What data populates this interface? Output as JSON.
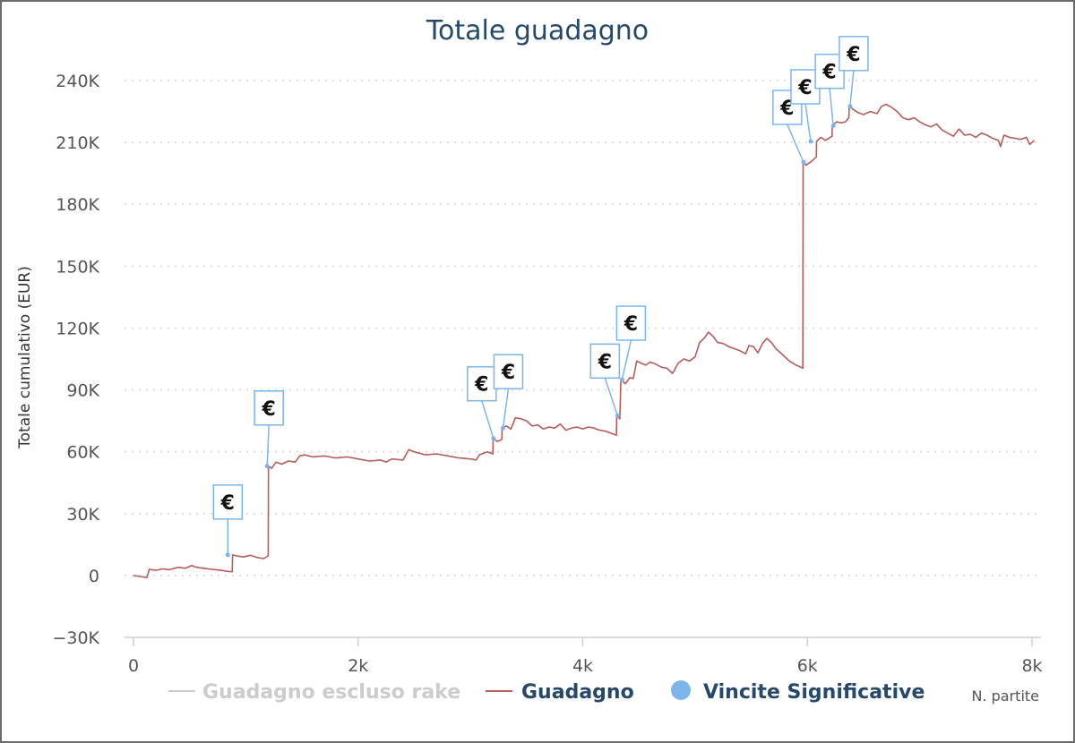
{
  "chart_data": {
    "type": "line",
    "title": "Totale guadagno",
    "xlabel": "N. partite",
    "ylabel": "Totale cumulativo (EUR)",
    "xlim": [
      0,
      8000
    ],
    "ylim": [
      -30000,
      240000
    ],
    "x_ticks": [
      0,
      2000,
      4000,
      6000,
      8000
    ],
    "x_tick_labels": [
      "0",
      "2k",
      "4k",
      "6k",
      "8k"
    ],
    "y_ticks": [
      -30000,
      0,
      30000,
      60000,
      90000,
      120000,
      150000,
      180000,
      210000,
      240000
    ],
    "y_tick_labels": [
      "−30K",
      "0",
      "30K",
      "60K",
      "90K",
      "120K",
      "150K",
      "180K",
      "210K",
      "240K"
    ],
    "grid": "horizontal dotted",
    "legend_position": "bottom",
    "colors": {
      "title": "#26486b",
      "guadagno": "#b85c5c",
      "rake_hidden": "#cccccc",
      "vincite": "#7cb5ec",
      "legend_active": "#26486b",
      "legend_hidden": "#cccccc"
    },
    "series": [
      {
        "name": "Guadagno escluso rake",
        "visible": false,
        "points": []
      },
      {
        "name": "Guadagno",
        "visible": true,
        "points": [
          [
            0,
            0
          ],
          [
            60,
            -500
          ],
          [
            120,
            -1000
          ],
          [
            140,
            3000
          ],
          [
            200,
            2500
          ],
          [
            260,
            3200
          ],
          [
            320,
            2800
          ],
          [
            400,
            4000
          ],
          [
            460,
            3500
          ],
          [
            520,
            4800
          ],
          [
            560,
            4000
          ],
          [
            620,
            3500
          ],
          [
            700,
            3000
          ],
          [
            780,
            2500
          ],
          [
            840,
            2000
          ],
          [
            880,
            1800
          ],
          [
            882,
            10000
          ],
          [
            920,
            9500
          ],
          [
            980,
            9000
          ],
          [
            1040,
            9800
          ],
          [
            1100,
            8700
          ],
          [
            1160,
            8200
          ],
          [
            1200,
            9500
          ],
          [
            1202,
            53000
          ],
          [
            1230,
            52000
          ],
          [
            1270,
            55000
          ],
          [
            1320,
            54000
          ],
          [
            1380,
            55500
          ],
          [
            1440,
            55000
          ],
          [
            1480,
            58000
          ],
          [
            1520,
            58500
          ],
          [
            1600,
            57500
          ],
          [
            1700,
            58000
          ],
          [
            1800,
            57000
          ],
          [
            1900,
            57500
          ],
          [
            2000,
            56500
          ],
          [
            2100,
            55500
          ],
          [
            2200,
            56000
          ],
          [
            2250,
            55000
          ],
          [
            2300,
            56500
          ],
          [
            2400,
            56000
          ],
          [
            2450,
            61000
          ],
          [
            2500,
            60000
          ],
          [
            2600,
            58500
          ],
          [
            2700,
            59000
          ],
          [
            2800,
            58000
          ],
          [
            2900,
            57000
          ],
          [
            3000,
            56500
          ],
          [
            3050,
            56000
          ],
          [
            3080,
            58500
          ],
          [
            3150,
            60000
          ],
          [
            3200,
            59000
          ],
          [
            3202,
            66500
          ],
          [
            3240,
            65000
          ],
          [
            3280,
            66000
          ],
          [
            3282,
            71500
          ],
          [
            3320,
            72500
          ],
          [
            3360,
            71000
          ],
          [
            3400,
            76500
          ],
          [
            3450,
            76000
          ],
          [
            3500,
            75000
          ],
          [
            3550,
            72500
          ],
          [
            3600,
            73000
          ],
          [
            3650,
            71000
          ],
          [
            3700,
            72000
          ],
          [
            3750,
            71500
          ],
          [
            3800,
            73500
          ],
          [
            3850,
            70500
          ],
          [
            3900,
            71500
          ],
          [
            3950,
            72000
          ],
          [
            4000,
            71000
          ],
          [
            4050,
            72000
          ],
          [
            4100,
            71500
          ],
          [
            4150,
            70500
          ],
          [
            4200,
            70000
          ],
          [
            4250,
            69000
          ],
          [
            4300,
            68000
          ],
          [
            4302,
            77500
          ],
          [
            4330,
            76000
          ],
          [
            4340,
            95000
          ],
          [
            4380,
            93000
          ],
          [
            4420,
            96000
          ],
          [
            4450,
            95500
          ],
          [
            4480,
            104000
          ],
          [
            4520,
            103000
          ],
          [
            4560,
            102000
          ],
          [
            4600,
            103500
          ],
          [
            4650,
            102500
          ],
          [
            4700,
            101000
          ],
          [
            4750,
            100500
          ],
          [
            4800,
            98000
          ],
          [
            4850,
            103000
          ],
          [
            4900,
            105000
          ],
          [
            4950,
            104000
          ],
          [
            5000,
            106000
          ],
          [
            5040,
            113000
          ],
          [
            5080,
            115000
          ],
          [
            5120,
            118000
          ],
          [
            5160,
            116000
          ],
          [
            5200,
            113000
          ],
          [
            5250,
            112500
          ],
          [
            5300,
            111000
          ],
          [
            5350,
            110000
          ],
          [
            5400,
            109000
          ],
          [
            5450,
            107500
          ],
          [
            5480,
            111500
          ],
          [
            5520,
            111000
          ],
          [
            5560,
            108000
          ],
          [
            5600,
            112500
          ],
          [
            5640,
            115000
          ],
          [
            5680,
            113000
          ],
          [
            5720,
            110000
          ],
          [
            5780,
            107000
          ],
          [
            5840,
            104000
          ],
          [
            5900,
            102000
          ],
          [
            5960,
            100500
          ],
          [
            5962,
            200500
          ],
          [
            5990,
            199000
          ],
          [
            6040,
            201000
          ],
          [
            6080,
            203000
          ],
          [
            6082,
            210500
          ],
          [
            6120,
            212500
          ],
          [
            6160,
            211000
          ],
          [
            6220,
            213000
          ],
          [
            6222,
            218000
          ],
          [
            6260,
            220000
          ],
          [
            6300,
            219500
          ],
          [
            6340,
            220000
          ],
          [
            6370,
            222000
          ],
          [
            6372,
            227500
          ],
          [
            6410,
            226000
          ],
          [
            6450,
            224500
          ],
          [
            6500,
            223500
          ],
          [
            6560,
            225000
          ],
          [
            6620,
            224000
          ],
          [
            6660,
            227500
          ],
          [
            6700,
            228500
          ],
          [
            6750,
            227000
          ],
          [
            6800,
            225000
          ],
          [
            6850,
            222000
          ],
          [
            6900,
            221000
          ],
          [
            6950,
            222000
          ],
          [
            7000,
            220000
          ],
          [
            7050,
            218500
          ],
          [
            7100,
            217500
          ],
          [
            7150,
            219000
          ],
          [
            7200,
            216000
          ],
          [
            7250,
            214500
          ],
          [
            7300,
            213000
          ],
          [
            7350,
            216500
          ],
          [
            7400,
            213500
          ],
          [
            7450,
            214000
          ],
          [
            7500,
            212500
          ],
          [
            7550,
            214500
          ],
          [
            7600,
            213500
          ],
          [
            7650,
            212000
          ],
          [
            7700,
            211000
          ],
          [
            7720,
            208000
          ],
          [
            7750,
            213500
          ],
          [
            7800,
            212500
          ],
          [
            7850,
            212000
          ],
          [
            7900,
            211500
          ],
          [
            7950,
            212500
          ],
          [
            7980,
            209000
          ],
          [
            8020,
            211000
          ]
        ]
      },
      {
        "name": "Vincite Significative",
        "visible": true,
        "marker": "€",
        "points": [
          [
            840,
            10000
          ],
          [
            1190,
            53000
          ],
          [
            3205,
            66500
          ],
          [
            3290,
            71500
          ],
          [
            4310,
            77500
          ],
          [
            4350,
            95000
          ],
          [
            5965,
            200500
          ],
          [
            6030,
            210500
          ],
          [
            6230,
            218000
          ],
          [
            6380,
            227500
          ]
        ]
      }
    ]
  }
}
